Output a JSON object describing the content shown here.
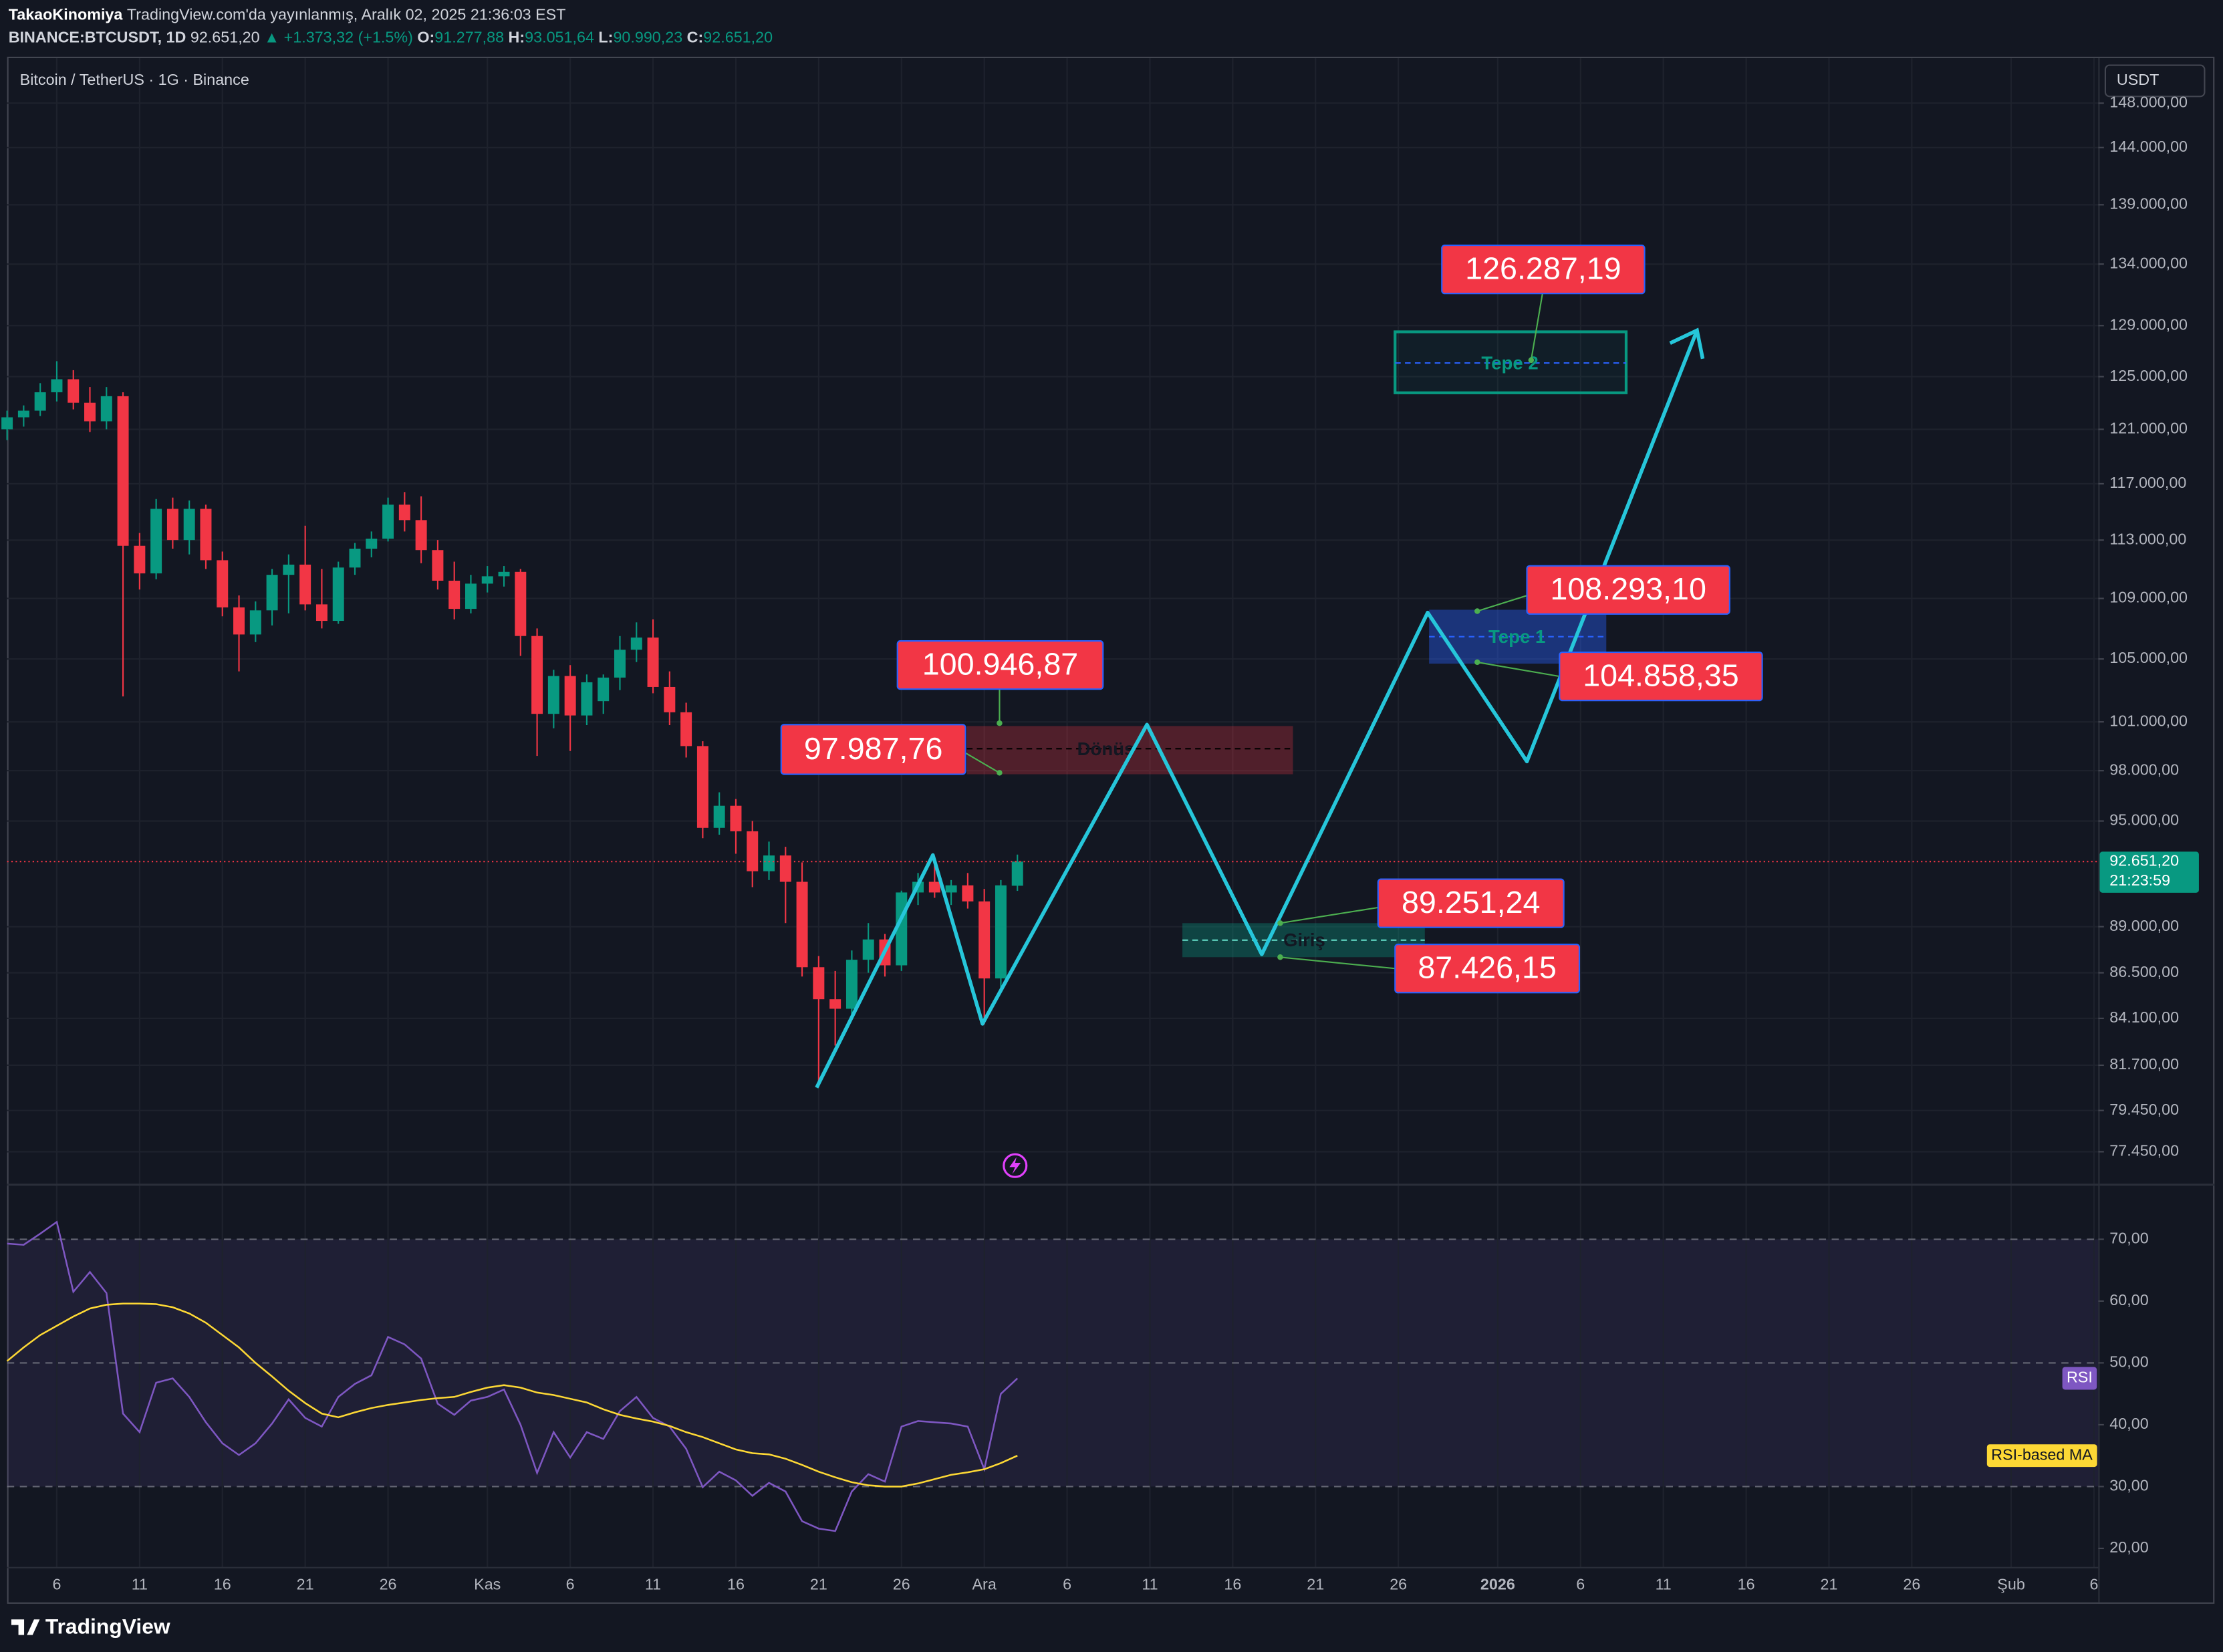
{
  "header": {
    "author": "TakaoKinomiya",
    "published": "TradingView.com'da yayınlanmış, Aralık 02, 2025 21:36:03 EST",
    "symbol": "BINANCE:BTCUSDT, 1D",
    "price": "92.651,20",
    "change": "▲ +1.373,32 (+1.5%)",
    "o_label": "O:",
    "o": "91.277,88",
    "h_label": "H:",
    "h": "93.051,64",
    "l_label": "L:",
    "l": "90.990,23",
    "c_label": "C:",
    "c": "92.651,20"
  },
  "currency": "USDT",
  "footer": "TradingView",
  "annotations": {
    "tepe2_price": "126.287,19",
    "tepe2": "Tepe 2",
    "tepe1_high": "108.293,10",
    "tepe1": "Tepe 1",
    "tepe1_low": "104.858,35",
    "donus_high": "100.946,87",
    "donus_low": "97.987,76",
    "donus": "Dönüş",
    "giris_high": "89.251,24",
    "giris": "Giriş",
    "giris_low": "87.426,15"
  },
  "chart_data": {
    "type": "candlestick",
    "title": "Bitcoin / TetherUS · 1G · Binance",
    "log_scale": true,
    "grid": true,
    "up_color": "#089981",
    "down_color": "#f23645",
    "x": [
      "2025-10-03",
      "2025-10-04",
      "2025-10-05",
      "2025-10-06",
      "2025-10-07",
      "2025-10-08",
      "2025-10-09",
      "2025-10-10",
      "2025-10-11",
      "2025-10-12",
      "2025-10-13",
      "2025-10-14",
      "2025-10-15",
      "2025-10-16",
      "2025-10-17",
      "2025-10-18",
      "2025-10-19",
      "2025-10-20",
      "2025-10-21",
      "2025-10-22",
      "2025-10-23",
      "2025-10-24",
      "2025-10-25",
      "2025-10-26",
      "2025-10-27",
      "2025-10-28",
      "2025-10-29",
      "2025-10-30",
      "2025-10-31",
      "2025-11-01",
      "2025-11-02",
      "2025-11-03",
      "2025-11-04",
      "2025-11-05",
      "2025-11-06",
      "2025-11-07",
      "2025-11-08",
      "2025-11-09",
      "2025-11-10",
      "2025-11-11",
      "2025-11-12",
      "2025-11-13",
      "2025-11-14",
      "2025-11-15",
      "2025-11-16",
      "2025-11-17",
      "2025-11-18",
      "2025-11-19",
      "2025-11-20",
      "2025-11-21",
      "2025-11-22",
      "2025-11-23",
      "2025-11-24",
      "2025-11-25",
      "2025-11-26",
      "2025-11-27",
      "2025-11-28",
      "2025-11-29",
      "2025-11-30",
      "2025-12-01",
      "2025-12-02",
      "2025-12-03"
    ],
    "open": [
      121000,
      121900,
      122400,
      123800,
      124800,
      123000,
      121600,
      123500,
      112600,
      110700,
      115200,
      113000,
      115200,
      111600,
      108400,
      106600,
      108200,
      110600,
      111300,
      108600,
      107500,
      111100,
      112400,
      113100,
      115500,
      114400,
      112300,
      110200,
      108300,
      110000,
      110500,
      110800,
      106500,
      101500,
      103900,
      101400,
      102300,
      103800,
      105600,
      106400,
      103200,
      101600,
      99500,
      94600,
      95900,
      94400,
      92100,
      93000,
      91500,
      86800,
      85100,
      84600,
      87200,
      88300,
      86900,
      90900,
      91500,
      90900,
      91300,
      90400,
      86200,
      91277.88
    ],
    "high": [
      122400,
      122800,
      124500,
      126200,
      125500,
      124200,
      124200,
      123800,
      113500,
      115900,
      116000,
      115800,
      115500,
      112200,
      109200,
      108800,
      111000,
      112000,
      114000,
      111000,
      111500,
      112800,
      113600,
      116000,
      116400,
      116100,
      113000,
      111500,
      110600,
      111200,
      111200,
      111000,
      107000,
      104300,
      104600,
      104000,
      104000,
      106500,
      107400,
      107600,
      104200,
      102200,
      99800,
      96700,
      96300,
      95000,
      93800,
      93500,
      92600,
      87400,
      86600,
      87700,
      89200,
      88600,
      91000,
      92000,
      92500,
      91600,
      92000,
      91100,
      91600,
      93051.64
    ],
    "low": [
      120200,
      121200,
      122000,
      123100,
      122500,
      120800,
      121000,
      102600,
      109600,
      110300,
      112400,
      112000,
      111000,
      107800,
      104200,
      106100,
      107200,
      108000,
      108200,
      107000,
      107300,
      110600,
      111800,
      112900,
      113600,
      111400,
      109600,
      107600,
      108000,
      109400,
      109800,
      105200,
      98900,
      100600,
      99200,
      100800,
      101500,
      103000,
      104800,
      102800,
      100800,
      98800,
      94000,
      94200,
      93100,
      91200,
      91600,
      89200,
      86300,
      80600,
      82700,
      84200,
      86500,
      86300,
      86600,
      90200,
      90600,
      90200,
      90000,
      83800,
      85700,
      90990.23
    ],
    "close": [
      121900,
      122400,
      123800,
      124800,
      123000,
      121600,
      123500,
      112600,
      110700,
      115200,
      113000,
      115200,
      111600,
      108400,
      106600,
      108200,
      110600,
      111300,
      108600,
      107500,
      111100,
      112400,
      113100,
      115500,
      114400,
      112300,
      110200,
      108300,
      110000,
      110500,
      110800,
      106500,
      101500,
      103900,
      101400,
      103500,
      103800,
      105600,
      106400,
      103200,
      101600,
      99500,
      94600,
      95900,
      94400,
      92100,
      93000,
      91500,
      86800,
      85100,
      84600,
      87200,
      88300,
      86900,
      90900,
      91500,
      90900,
      91300,
      90400,
      86200,
      91300,
      92651.2
    ],
    "last_price": 92651.2,
    "last_price_label": "92.651,20",
    "countdown": "21:23:59",
    "last_color": "#089981",
    "xlim": [
      "2025-10-03",
      "2026-02-06"
    ],
    "xticks": [
      {
        "value": "2025-10-06",
        "label": "6"
      },
      {
        "value": "2025-10-11",
        "label": "11"
      },
      {
        "value": "2025-10-16",
        "label": "16"
      },
      {
        "value": "2025-10-21",
        "label": "21"
      },
      {
        "value": "2025-10-26",
        "label": "26"
      },
      {
        "value": "2025-11-01",
        "label": "Kas"
      },
      {
        "value": "2025-11-06",
        "label": "6"
      },
      {
        "value": "2025-11-11",
        "label": "11"
      },
      {
        "value": "2025-11-16",
        "label": "16"
      },
      {
        "value": "2025-11-21",
        "label": "21"
      },
      {
        "value": "2025-11-26",
        "label": "26"
      },
      {
        "value": "2025-12-01",
        "label": "Ara"
      },
      {
        "value": "2025-12-06",
        "label": "6"
      },
      {
        "value": "2025-12-11",
        "label": "11"
      },
      {
        "value": "2025-12-16",
        "label": "16"
      },
      {
        "value": "2025-12-21",
        "label": "21"
      },
      {
        "value": "2025-12-26",
        "label": "26"
      },
      {
        "value": "2026-01-01",
        "label": "2026"
      },
      {
        "value": "2026-01-06",
        "label": "6"
      },
      {
        "value": "2026-01-11",
        "label": "11"
      },
      {
        "value": "2026-01-16",
        "label": "16"
      },
      {
        "value": "2026-01-21",
        "label": "21"
      },
      {
        "value": "2026-01-26",
        "label": "26"
      },
      {
        "value": "2026-02-01",
        "label": "Şub"
      },
      {
        "value": "2026-02-06",
        "label": "6"
      }
    ],
    "ylim": [
      75920,
      152040
    ],
    "yticks": [
      {
        "value": 148000,
        "label": "148.000,00"
      },
      {
        "value": 144000,
        "label": "144.000,00"
      },
      {
        "value": 139000,
        "label": "139.000,00"
      },
      {
        "value": 134000,
        "label": "134.000,00"
      },
      {
        "value": 129000,
        "label": "129.000,00"
      },
      {
        "value": 125000,
        "label": "125.000,00"
      },
      {
        "value": 121000,
        "label": "121.000,00"
      },
      {
        "value": 117000,
        "label": "117.000,00"
      },
      {
        "value": 113000,
        "label": "113.000,00"
      },
      {
        "value": 109000,
        "label": "109.000,00"
      },
      {
        "value": 105000,
        "label": "105.000,00"
      },
      {
        "value": 101000,
        "label": "101.000,00"
      },
      {
        "value": 98000,
        "label": "98.000,00"
      },
      {
        "value": 95000,
        "label": "95.000,00"
      },
      {
        "value": 89000,
        "label": "89.000,00"
      },
      {
        "value": 86500,
        "label": "86.500,00"
      },
      {
        "value": 84100,
        "label": "84.100,00"
      },
      {
        "value": 81700,
        "label": "81.700,00"
      },
      {
        "value": 79450,
        "label": "79.450,00"
      },
      {
        "value": 77450,
        "label": "77.450,00"
      }
    ],
    "indicator": {
      "ylim": [
        17.0,
        78.7
      ],
      "yticks": [
        {
          "value": 70,
          "label": "70,00"
        },
        {
          "value": 60,
          "label": "60,00"
        },
        {
          "value": 50,
          "label": "50,00"
        },
        {
          "value": 40,
          "label": "40,00"
        },
        {
          "value": 30,
          "label": "30,00"
        },
        {
          "value": 20,
          "label": "20,00"
        }
      ],
      "band": [
        30,
        70
      ],
      "midline": 50,
      "band_color": "#7e57c2",
      "series": [
        {
          "name": "RSI",
          "color": "#7e57c2",
          "values": [
            69.3,
            69.1,
            70.9,
            72.8,
            61.5,
            64.7,
            61.3,
            41.8,
            38.8,
            46.8,
            47.5,
            44.5,
            40.4,
            37.0,
            35.1,
            37.0,
            40.2,
            44.1,
            41.1,
            39.7,
            44.5,
            46.6,
            48.0,
            54.2,
            53.0,
            50.7,
            43.4,
            41.6,
            43.9,
            44.5,
            45.7,
            40.0,
            32.2,
            38.8,
            34.7,
            38.8,
            37.7,
            42.2,
            44.5,
            41.1,
            39.7,
            36.1,
            29.9,
            32.4,
            31.0,
            28.5,
            30.6,
            29.2,
            24.4,
            23.2,
            22.8,
            29.2,
            32.0,
            30.8,
            39.7,
            40.6,
            40.4,
            40.2,
            39.7,
            32.8,
            45.0,
            47.5
          ]
        },
        {
          "name": "RSI-based MA",
          "color": "#fdd835",
          "values": [
            50.3,
            52.5,
            54.5,
            56.0,
            57.5,
            58.8,
            59.4,
            59.6,
            59.6,
            59.5,
            59.0,
            58.0,
            56.5,
            54.5,
            52.5,
            50.0,
            47.8,
            45.5,
            43.5,
            41.8,
            41.2,
            42.0,
            42.7,
            43.2,
            43.6,
            44.0,
            44.3,
            44.5,
            45.3,
            46.0,
            46.4,
            46.0,
            45.2,
            44.8,
            44.2,
            43.6,
            42.5,
            41.6,
            41.0,
            40.5,
            39.8,
            38.8,
            38.0,
            37.0,
            36.0,
            35.4,
            35.2,
            34.5,
            33.5,
            32.4,
            31.5,
            30.7,
            30.2,
            30.0,
            30.0,
            30.5,
            31.2,
            31.9,
            32.3,
            32.8,
            33.8,
            35.0
          ]
        }
      ]
    }
  }
}
